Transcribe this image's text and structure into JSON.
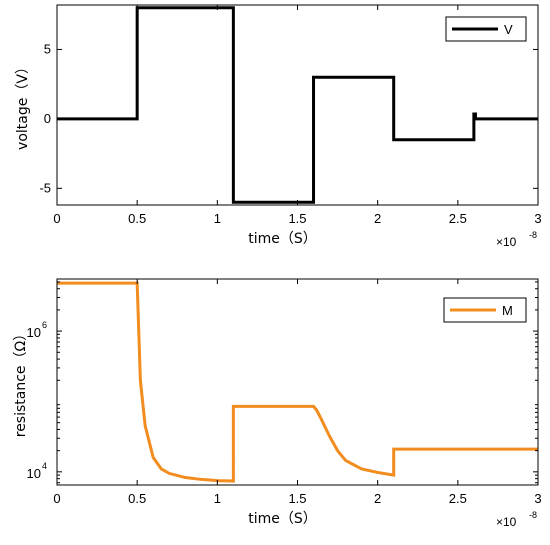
{
  "chart_data": [
    {
      "type": "line",
      "xlabel": "time（S）",
      "ylabel": "voltage（V）",
      "x_multiplier": "×10",
      "x_multiplier_exp": "-8",
      "xlim": [
        0,
        3
      ],
      "ylim": [
        -6.2,
        8.2
      ],
      "yscale": "linear",
      "xticks": [
        0,
        0.5,
        1,
        1.5,
        2,
        2.5,
        3
      ],
      "xticklabels": [
        "0",
        "0.5",
        "1",
        "1.5",
        "2",
        "2.5",
        "3"
      ],
      "yticks": [
        -5,
        0,
        5
      ],
      "yticklabels": [
        "-5",
        "0",
        "5"
      ],
      "legend_position": "top-right",
      "series": [
        {
          "name": "V",
          "color": "#000000",
          "x": [
            0,
            0.5,
            0.5,
            1.1,
            1.1,
            1.6,
            1.6,
            2.1,
            2.1,
            2.6,
            2.6,
            2.61,
            2.61,
            3.0
          ],
          "y": [
            0,
            0,
            8,
            8,
            -6,
            -6,
            3,
            3,
            -1.5,
            -1.5,
            0.35,
            0.35,
            0,
            0
          ]
        }
      ]
    },
    {
      "type": "line",
      "xlabel": "time（S）",
      "ylabel": "resistance（Ω）",
      "x_multiplier": "×10",
      "x_multiplier_exp": "-8",
      "xlim": [
        0,
        3
      ],
      "ylim": [
        6500,
        5500000
      ],
      "yscale": "log",
      "xticks": [
        0,
        0.5,
        1,
        1.5,
        2,
        2.5,
        3
      ],
      "xticklabels": [
        "0",
        "0.5",
        "1",
        "1.5",
        "2",
        "2.5",
        "3"
      ],
      "yticks": [
        10000,
        1000000
      ],
      "yticklabels": [
        {
          "base": "10",
          "exp": "4"
        },
        {
          "base": "10",
          "exp": "6"
        }
      ],
      "legend_position": "top-right",
      "series": [
        {
          "name": "M",
          "color": "#f28c1e",
          "x": [
            0,
            0.5,
            0.52,
            0.55,
            0.6,
            0.65,
            0.7,
            0.8,
            0.9,
            1.0,
            1.1,
            1.1,
            1.6,
            1.62,
            1.65,
            1.7,
            1.75,
            1.8,
            1.9,
            2.0,
            2.1,
            2.1,
            3.0
          ],
          "y": [
            4800000,
            4800000,
            200000,
            45000,
            16000,
            11000,
            9500,
            8300,
            7800,
            7500,
            7400,
            85000,
            85000,
            75000,
            55000,
            32000,
            20000,
            14500,
            11000,
            9800,
            9000,
            21000,
            21000
          ]
        }
      ]
    }
  ]
}
